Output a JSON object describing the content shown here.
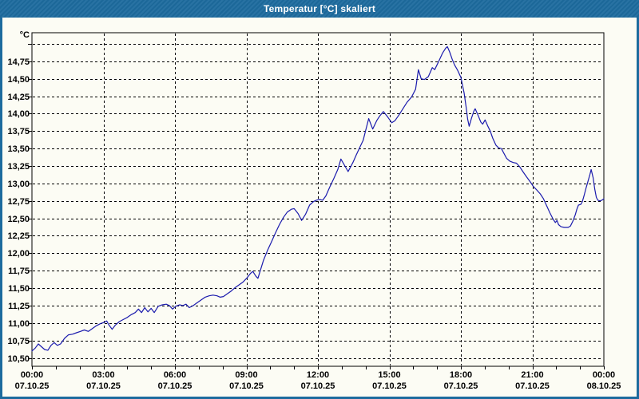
{
  "window": {
    "title": "Temperatur [°C] skaliert",
    "title_bar_color": "#1d6b9e",
    "frame_color": "#1d6b9e",
    "client_background": "#fcfcf4"
  },
  "chart_data": {
    "type": "line",
    "title": "Temperatur [°C] skaliert",
    "xlabel": "",
    "ylabel": "°C",
    "unit_label": "°C",
    "grid": true,
    "grid_style": "dashed",
    "grid_color": "#000000",
    "line_color": "#1b1bad",
    "ylim": [
      10.38,
      15.16
    ],
    "y_ticks": [
      {
        "value": 15.0,
        "label": ""
      },
      {
        "value": 14.75,
        "label": "14,75"
      },
      {
        "value": 14.5,
        "label": "14,50"
      },
      {
        "value": 14.25,
        "label": "14,25"
      },
      {
        "value": 14.0,
        "label": "14,00"
      },
      {
        "value": 13.75,
        "label": "13,75"
      },
      {
        "value": 13.5,
        "label": "13,50"
      },
      {
        "value": 13.25,
        "label": "13,25"
      },
      {
        "value": 13.0,
        "label": "13,00"
      },
      {
        "value": 12.75,
        "label": "12,75"
      },
      {
        "value": 12.5,
        "label": "12,50"
      },
      {
        "value": 12.25,
        "label": "12,25"
      },
      {
        "value": 12.0,
        "label": "12,00"
      },
      {
        "value": 11.75,
        "label": "11,75"
      },
      {
        "value": 11.5,
        "label": "11,50"
      },
      {
        "value": 11.25,
        "label": "11,25"
      },
      {
        "value": 11.0,
        "label": "11,00"
      },
      {
        "value": 10.75,
        "label": "10,75"
      },
      {
        "value": 10.5,
        "label": "10,50"
      }
    ],
    "x_ticks": [
      {
        "hour": 0,
        "time": "00:00",
        "date": "07.10.25"
      },
      {
        "hour": 3,
        "time": "03:00",
        "date": "07.10.25"
      },
      {
        "hour": 6,
        "time": "06:00",
        "date": "07.10.25"
      },
      {
        "hour": 9,
        "time": "09:00",
        "date": "07.10.25"
      },
      {
        "hour": 12,
        "time": "12:00",
        "date": "07.10.25"
      },
      {
        "hour": 15,
        "time": "15:00",
        "date": "07.10.25"
      },
      {
        "hour": 18,
        "time": "18:00",
        "date": "07.10.25"
      },
      {
        "hour": 21,
        "time": "21:00",
        "date": "07.10.25"
      },
      {
        "hour": 24,
        "time": "00:00",
        "date": "08.10.25"
      }
    ],
    "minor_tick_every_hours": 1,
    "series": [
      {
        "name": "Temperatur",
        "color": "#1b1bad",
        "points": [
          [
            "00:00",
            10.6
          ],
          [
            "00:08",
            10.64
          ],
          [
            "00:16",
            10.7
          ],
          [
            "00:24",
            10.66
          ],
          [
            "00:32",
            10.62
          ],
          [
            "00:40",
            10.61
          ],
          [
            "00:48",
            10.68
          ],
          [
            "00:56",
            10.72
          ],
          [
            "01:04",
            10.68
          ],
          [
            "01:12",
            10.7
          ],
          [
            "01:22",
            10.78
          ],
          [
            "01:32",
            10.83
          ],
          [
            "01:42",
            10.84
          ],
          [
            "01:52",
            10.86
          ],
          [
            "02:02",
            10.88
          ],
          [
            "02:12",
            10.9
          ],
          [
            "02:22",
            10.88
          ],
          [
            "02:32",
            10.92
          ],
          [
            "02:42",
            10.96
          ],
          [
            "02:52",
            10.99
          ],
          [
            "03:02",
            11.01
          ],
          [
            "03:08",
            11.03
          ],
          [
            "03:14",
            10.97
          ],
          [
            "03:22",
            10.91
          ],
          [
            "03:30",
            10.97
          ],
          [
            "03:40",
            11.02
          ],
          [
            "03:50",
            11.05
          ],
          [
            "04:00",
            11.08
          ],
          [
            "04:10",
            11.12
          ],
          [
            "04:20",
            11.15
          ],
          [
            "04:28",
            11.2
          ],
          [
            "04:36",
            11.15
          ],
          [
            "04:44",
            11.22
          ],
          [
            "04:52",
            11.16
          ],
          [
            "05:00",
            11.21
          ],
          [
            "05:08",
            11.15
          ],
          [
            "05:18",
            11.24
          ],
          [
            "05:28",
            11.26
          ],
          [
            "05:38",
            11.27
          ],
          [
            "05:46",
            11.25
          ],
          [
            "05:54",
            11.2
          ],
          [
            "06:02",
            11.24
          ],
          [
            "06:12",
            11.26
          ],
          [
            "06:20",
            11.25
          ],
          [
            "06:28",
            11.27
          ],
          [
            "06:36",
            11.22
          ],
          [
            "06:46",
            11.25
          ],
          [
            "06:56",
            11.29
          ],
          [
            "07:06",
            11.33
          ],
          [
            "07:16",
            11.37
          ],
          [
            "07:26",
            11.39
          ],
          [
            "07:36",
            11.4
          ],
          [
            "07:46",
            11.39
          ],
          [
            "07:54",
            11.37
          ],
          [
            "08:02",
            11.38
          ],
          [
            "08:12",
            11.42
          ],
          [
            "08:22",
            11.46
          ],
          [
            "08:32",
            11.51
          ],
          [
            "08:42",
            11.55
          ],
          [
            "08:52",
            11.59
          ],
          [
            "09:02",
            11.65
          ],
          [
            "09:10",
            11.71
          ],
          [
            "09:16",
            11.74
          ],
          [
            "09:24",
            11.67
          ],
          [
            "09:29",
            11.64
          ],
          [
            "09:36",
            11.77
          ],
          [
            "09:43",
            11.9
          ],
          [
            "09:53",
            12.04
          ],
          [
            "10:03",
            12.16
          ],
          [
            "10:13",
            12.29
          ],
          [
            "10:23",
            12.41
          ],
          [
            "10:33",
            12.51
          ],
          [
            "10:43",
            12.59
          ],
          [
            "10:53",
            12.63
          ],
          [
            "11:00",
            12.64
          ],
          [
            "11:10",
            12.57
          ],
          [
            "11:19",
            12.47
          ],
          [
            "11:29",
            12.56
          ],
          [
            "11:39",
            12.69
          ],
          [
            "11:49",
            12.74
          ],
          [
            "11:56",
            12.76
          ],
          [
            "12:04",
            12.77
          ],
          [
            "12:12",
            12.76
          ],
          [
            "12:20",
            12.82
          ],
          [
            "12:30",
            12.95
          ],
          [
            "12:40",
            13.07
          ],
          [
            "12:50",
            13.2
          ],
          [
            "12:58",
            13.35
          ],
          [
            "13:08",
            13.25
          ],
          [
            "13:16",
            13.17
          ],
          [
            "13:28",
            13.3
          ],
          [
            "13:36",
            13.4
          ],
          [
            "13:44",
            13.5
          ],
          [
            "13:54",
            13.62
          ],
          [
            "14:02",
            13.8
          ],
          [
            "14:08",
            13.93
          ],
          [
            "14:18",
            13.78
          ],
          [
            "14:28",
            13.9
          ],
          [
            "14:36",
            13.97
          ],
          [
            "14:45",
            14.03
          ],
          [
            "14:56",
            13.95
          ],
          [
            "15:06",
            13.87
          ],
          [
            "15:14",
            13.9
          ],
          [
            "15:24",
            13.98
          ],
          [
            "15:34",
            14.07
          ],
          [
            "15:44",
            14.16
          ],
          [
            "15:56",
            14.24
          ],
          [
            "16:06",
            14.35
          ],
          [
            "16:13",
            14.63
          ],
          [
            "16:20",
            14.5
          ],
          [
            "16:28",
            14.49
          ],
          [
            "16:38",
            14.53
          ],
          [
            "16:48",
            14.66
          ],
          [
            "16:54",
            14.63
          ],
          [
            "17:00",
            14.7
          ],
          [
            "17:06",
            14.77
          ],
          [
            "17:14",
            14.87
          ],
          [
            "17:22",
            14.94
          ],
          [
            "17:26",
            14.96
          ],
          [
            "17:32",
            14.88
          ],
          [
            "17:38",
            14.78
          ],
          [
            "17:44",
            14.7
          ],
          [
            "17:52",
            14.62
          ],
          [
            "18:00",
            14.52
          ],
          [
            "18:08",
            14.3
          ],
          [
            "18:13",
            14.1
          ],
          [
            "18:17",
            13.92
          ],
          [
            "18:21",
            13.82
          ],
          [
            "18:27",
            13.94
          ],
          [
            "18:33",
            14.04
          ],
          [
            "18:36",
            14.07
          ],
          [
            "18:43",
            13.98
          ],
          [
            "18:50",
            13.88
          ],
          [
            "18:55",
            13.85
          ],
          [
            "19:01",
            13.91
          ],
          [
            "19:08",
            13.82
          ],
          [
            "19:14",
            13.75
          ],
          [
            "19:20",
            13.65
          ],
          [
            "19:28",
            13.55
          ],
          [
            "19:35",
            13.51
          ],
          [
            "19:42",
            13.5
          ],
          [
            "19:55",
            13.36
          ],
          [
            "20:03",
            13.32
          ],
          [
            "20:12",
            13.3
          ],
          [
            "20:20",
            13.29
          ],
          [
            "20:28",
            13.24
          ],
          [
            "20:36",
            13.17
          ],
          [
            "20:46",
            13.09
          ],
          [
            "20:55",
            13.02
          ],
          [
            "21:02",
            12.96
          ],
          [
            "21:12",
            12.9
          ],
          [
            "21:20",
            12.85
          ],
          [
            "21:28",
            12.78
          ],
          [
            "21:36",
            12.68
          ],
          [
            "21:44",
            12.58
          ],
          [
            "21:52",
            12.49
          ],
          [
            "21:58",
            12.44
          ],
          [
            "22:02",
            12.47
          ],
          [
            "22:06",
            12.41
          ],
          [
            "22:12",
            12.38
          ],
          [
            "22:20",
            12.37
          ],
          [
            "22:30",
            12.37
          ],
          [
            "22:36",
            12.39
          ],
          [
            "22:42",
            12.46
          ],
          [
            "22:48",
            12.55
          ],
          [
            "22:52",
            12.63
          ],
          [
            "22:56",
            12.69
          ],
          [
            "23:02",
            12.7
          ],
          [
            "23:06",
            12.74
          ],
          [
            "23:10",
            12.82
          ],
          [
            "23:15",
            12.93
          ],
          [
            "23:20",
            13.03
          ],
          [
            "23:25",
            13.13
          ],
          [
            "23:28",
            13.2
          ],
          [
            "23:33",
            13.08
          ],
          [
            "23:37",
            12.92
          ],
          [
            "23:41",
            12.8
          ],
          [
            "23:45",
            12.76
          ],
          [
            "23:50",
            12.75
          ],
          [
            "23:55",
            12.76
          ],
          [
            "24:00",
            12.78
          ]
        ]
      }
    ]
  }
}
